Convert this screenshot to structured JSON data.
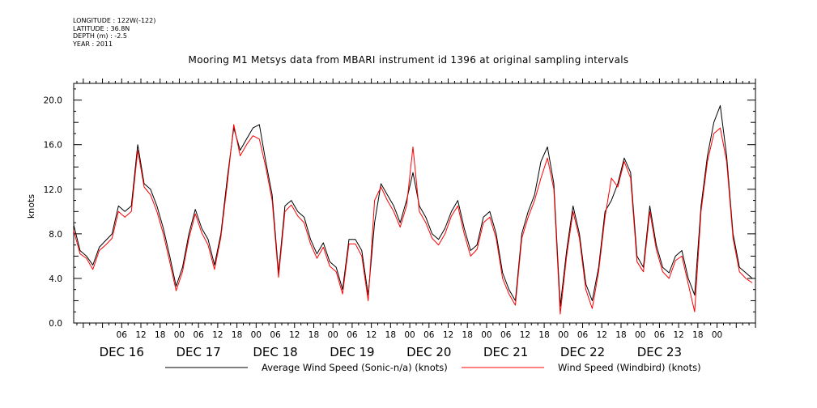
{
  "header": {
    "longitude": "LONGITUDE : 122W(-122)",
    "latitude": "LATITUDE : 36.8N",
    "depth": "DEPTH (m) : -2.5",
    "year": "YEAR : 2011"
  },
  "chart_data": {
    "type": "line",
    "title": "Mooring M1 Metsys data from MBARI instrument id 1396 at original sampling intervals",
    "ylabel": "knots",
    "ylim": [
      0,
      21.5
    ],
    "xlim_hours": [
      -9,
      204
    ],
    "yticks": [
      "0.0",
      "4.0",
      "8.0",
      "12.0",
      "16.0",
      "20.0"
    ],
    "ytick_values": [
      0,
      4,
      8,
      12,
      16,
      20
    ],
    "hour_ticks": [
      "06",
      "12",
      "18",
      "00",
      "06",
      "12",
      "18",
      "00",
      "06",
      "12",
      "18",
      "00",
      "06",
      "12",
      "18",
      "00",
      "06",
      "12",
      "18",
      "00",
      "06",
      "12",
      "18",
      "00",
      "06",
      "12",
      "18",
      "00",
      "06",
      "12",
      "18",
      "00"
    ],
    "day_labels": [
      "DEC 16",
      "DEC 17",
      "DEC 18",
      "DEC 19",
      "DEC 20",
      "DEC 21",
      "DEC 22",
      "DEC 23"
    ],
    "legend_position": "bottom",
    "series": [
      {
        "name": "Average Wind Speed (Sonic-n/a) (knots)",
        "color": "#000000",
        "x_hours": [
          -9,
          -7,
          -5,
          -3,
          -1,
          1,
          3,
          5,
          7,
          9,
          11,
          13,
          15,
          17,
          19,
          21,
          23,
          25,
          27,
          29,
          31,
          33,
          35,
          37,
          39,
          41,
          43,
          45,
          47,
          49,
          51,
          53,
          55,
          57,
          59,
          61,
          63,
          65,
          67,
          69,
          71,
          73,
          75,
          77,
          79,
          81,
          83,
          85,
          87,
          89,
          91,
          93,
          95,
          97,
          99,
          101,
          103,
          105,
          107,
          109,
          111,
          113,
          115,
          117,
          119,
          121,
          123,
          125,
          127,
          129,
          131,
          133,
          135,
          137,
          139,
          141,
          143,
          145,
          147,
          149,
          151,
          153,
          155,
          157,
          159,
          161,
          163,
          165,
          167,
          169,
          171,
          173,
          175,
          177,
          179,
          181,
          183,
          185,
          187,
          189,
          191,
          193,
          195,
          197,
          199,
          201,
          203
        ],
        "values": [
          8.8,
          6.5,
          6.0,
          5.2,
          6.8,
          7.4,
          8.0,
          10.5,
          10.0,
          10.5,
          16.0,
          12.5,
          12.0,
          10.5,
          8.5,
          6.0,
          3.3,
          5.0,
          8.0,
          10.2,
          8.5,
          7.5,
          5.2,
          8.0,
          13.0,
          17.5,
          15.5,
          16.5,
          17.5,
          17.8,
          14.5,
          11.5,
          4.5,
          10.5,
          11.0,
          10.0,
          9.5,
          7.5,
          6.2,
          7.2,
          5.5,
          5.0,
          3.0,
          7.5,
          7.5,
          6.5,
          2.5,
          9.0,
          12.5,
          11.5,
          10.5,
          9.0,
          11.0,
          13.5,
          10.5,
          9.5,
          8.0,
          7.5,
          8.5,
          10.0,
          11.0,
          8.5,
          6.5,
          7.0,
          9.5,
          10.0,
          8.0,
          4.5,
          3.0,
          2.0,
          8.0,
          10.0,
          11.5,
          14.5,
          15.8,
          12.5,
          1.5,
          6.5,
          10.5,
          8.0,
          3.5,
          2.0,
          5.0,
          10.0,
          11.0,
          12.5,
          14.8,
          13.5,
          6.0,
          5.0,
          10.5,
          7.0,
          5.0,
          4.5,
          6.0,
          6.5,
          4.0,
          2.5,
          10.5,
          15.0,
          18.0,
          19.5,
          15.0,
          8.0,
          5.0,
          4.5,
          4.0
        ]
      },
      {
        "name": "Wind Speed (Windbird) (knots)",
        "color": "#ff0000",
        "x_hours": [
          -9,
          -7,
          -5,
          -3,
          -1,
          1,
          3,
          5,
          7,
          9,
          11,
          13,
          15,
          17,
          19,
          21,
          23,
          25,
          27,
          29,
          31,
          33,
          35,
          37,
          39,
          41,
          43,
          45,
          47,
          49,
          51,
          53,
          55,
          57,
          59,
          61,
          63,
          65,
          67,
          69,
          71,
          73,
          75,
          77,
          79,
          81,
          83,
          85,
          87,
          89,
          91,
          93,
          95,
          97,
          99,
          101,
          103,
          105,
          107,
          109,
          111,
          113,
          115,
          117,
          119,
          121,
          123,
          125,
          127,
          129,
          131,
          133,
          135,
          137,
          139,
          141,
          143,
          145,
          147,
          149,
          151,
          153,
          155,
          157,
          159,
          161,
          163,
          165,
          167,
          169,
          171,
          173,
          175,
          177,
          179,
          181,
          183,
          185,
          187,
          189,
          191,
          193,
          195,
          197,
          199,
          201,
          203
        ],
        "values": [
          8.3,
          6.2,
          5.8,
          4.8,
          6.5,
          7.0,
          7.6,
          10.0,
          9.5,
          10.0,
          15.5,
          12.2,
          11.5,
          10.0,
          8.0,
          5.5,
          2.9,
          4.6,
          7.6,
          9.8,
          8.1,
          7.0,
          4.8,
          7.7,
          12.5,
          17.8,
          15.0,
          16.0,
          16.8,
          16.5,
          14.0,
          11.0,
          4.1,
          10.0,
          10.6,
          9.6,
          9.0,
          7.1,
          5.8,
          6.8,
          5.1,
          4.6,
          2.6,
          7.1,
          7.1,
          6.0,
          2.0,
          11.0,
          12.2,
          11.0,
          10.0,
          8.6,
          10.5,
          15.8,
          10.0,
          9.0,
          7.6,
          7.0,
          8.0,
          9.6,
          10.5,
          8.0,
          6.0,
          6.6,
          9.0,
          9.5,
          7.6,
          4.0,
          2.6,
          1.6,
          7.6,
          9.5,
          11.0,
          13.0,
          14.8,
          12.0,
          0.8,
          6.0,
          10.0,
          7.6,
          3.0,
          1.3,
          4.6,
          9.5,
          13.0,
          12.2,
          14.5,
          13.0,
          5.5,
          4.6,
          10.0,
          6.6,
          4.6,
          4.0,
          5.6,
          6.0,
          3.5,
          1.0,
          10.0,
          14.5,
          17.0,
          17.5,
          14.5,
          7.6,
          4.6,
          4.0,
          3.6
        ]
      }
    ]
  }
}
